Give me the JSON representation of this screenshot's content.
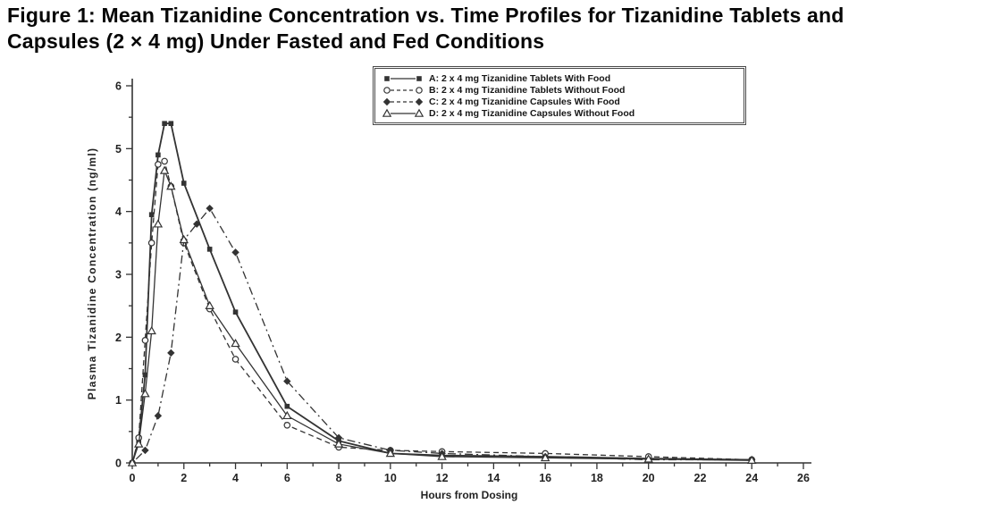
{
  "document": {
    "title_line1": "Figure 1: Mean Tizanidine Concentration vs. Time Profiles for Tizanidine Tablets and",
    "title_line2": "Capsules (2 × 4 mg) Under Fasted and Fed Conditions"
  },
  "chart_data": {
    "type": "line",
    "title": "",
    "xlabel": "Hours from Dosing",
    "ylabel": "Plasma Tizanidine Concentration (ng/ml)",
    "xlim": [
      0,
      26
    ],
    "ylim": [
      0,
      6
    ],
    "x_major_ticks": [
      0,
      2,
      4,
      6,
      8,
      10,
      12,
      14,
      16,
      18,
      20,
      22,
      24,
      26
    ],
    "x_minor_step": 1,
    "y_major_ticks": [
      0,
      1,
      2,
      3,
      4,
      5,
      6
    ],
    "y_minor_step": 0.5,
    "grid": false,
    "legend_position": "top-center-inside",
    "colors": {
      "line": "#333333",
      "axis": "#333333",
      "text": "#222222"
    },
    "series": [
      {
        "id": "A",
        "label": "A: 2 x 4 mg Tizanidine Tablets With Food",
        "marker": "square-filled",
        "line": "solid",
        "points": [
          [
            0,
            0
          ],
          [
            0.25,
            0.35
          ],
          [
            0.5,
            1.4
          ],
          [
            0.75,
            3.95
          ],
          [
            1,
            4.9
          ],
          [
            1.25,
            5.4
          ],
          [
            1.5,
            5.4
          ],
          [
            2,
            4.45
          ],
          [
            3,
            3.4
          ],
          [
            4,
            2.4
          ],
          [
            6,
            0.9
          ],
          [
            8,
            0.35
          ],
          [
            10,
            0.15
          ],
          [
            12,
            0.12
          ],
          [
            16,
            0.1
          ],
          [
            20,
            0.07
          ],
          [
            24,
            0.05
          ]
        ]
      },
      {
        "id": "B",
        "label": "B: 2 x 4 mg Tizanidine Tablets Without Food",
        "marker": "circle-open",
        "line": "dashed",
        "points": [
          [
            0,
            0
          ],
          [
            0.25,
            0.4
          ],
          [
            0.5,
            1.95
          ],
          [
            0.75,
            3.5
          ],
          [
            1,
            4.75
          ],
          [
            1.25,
            4.8
          ],
          [
            1.5,
            4.4
          ],
          [
            2,
            3.5
          ],
          [
            3,
            2.45
          ],
          [
            4,
            1.65
          ],
          [
            6,
            0.6
          ],
          [
            8,
            0.25
          ],
          [
            10,
            0.2
          ],
          [
            12,
            0.18
          ],
          [
            16,
            0.15
          ],
          [
            20,
            0.1
          ],
          [
            24,
            0.05
          ]
        ]
      },
      {
        "id": "C",
        "label": "C: 2 x 4 mg Tizanidine Capsules With Food",
        "marker": "diamond-filled",
        "line": "dash-dot",
        "points": [
          [
            0,
            0
          ],
          [
            0.5,
            0.2
          ],
          [
            1,
            0.75
          ],
          [
            1.5,
            1.75
          ],
          [
            2,
            3.55
          ],
          [
            2.5,
            3.8
          ],
          [
            3,
            4.05
          ],
          [
            4,
            3.35
          ],
          [
            6,
            1.3
          ],
          [
            8,
            0.4
          ],
          [
            10,
            0.2
          ],
          [
            12,
            0.15
          ],
          [
            16,
            0.1
          ],
          [
            20,
            0.05
          ],
          [
            24,
            0.05
          ]
        ]
      },
      {
        "id": "D",
        "label": "D: 2 x 4 mg Tizanidine Capsules Without Food",
        "marker": "triangle-open",
        "line": "solid-thin",
        "points": [
          [
            0,
            0
          ],
          [
            0.25,
            0.3
          ],
          [
            0.5,
            1.1
          ],
          [
            0.75,
            2.1
          ],
          [
            1,
            3.8
          ],
          [
            1.25,
            4.65
          ],
          [
            1.5,
            4.4
          ],
          [
            2,
            3.55
          ],
          [
            3,
            2.5
          ],
          [
            4,
            1.9
          ],
          [
            6,
            0.75
          ],
          [
            8,
            0.3
          ],
          [
            10,
            0.15
          ],
          [
            12,
            0.1
          ],
          [
            16,
            0.08
          ],
          [
            20,
            0.06
          ],
          [
            24,
            0.04
          ]
        ]
      }
    ]
  }
}
